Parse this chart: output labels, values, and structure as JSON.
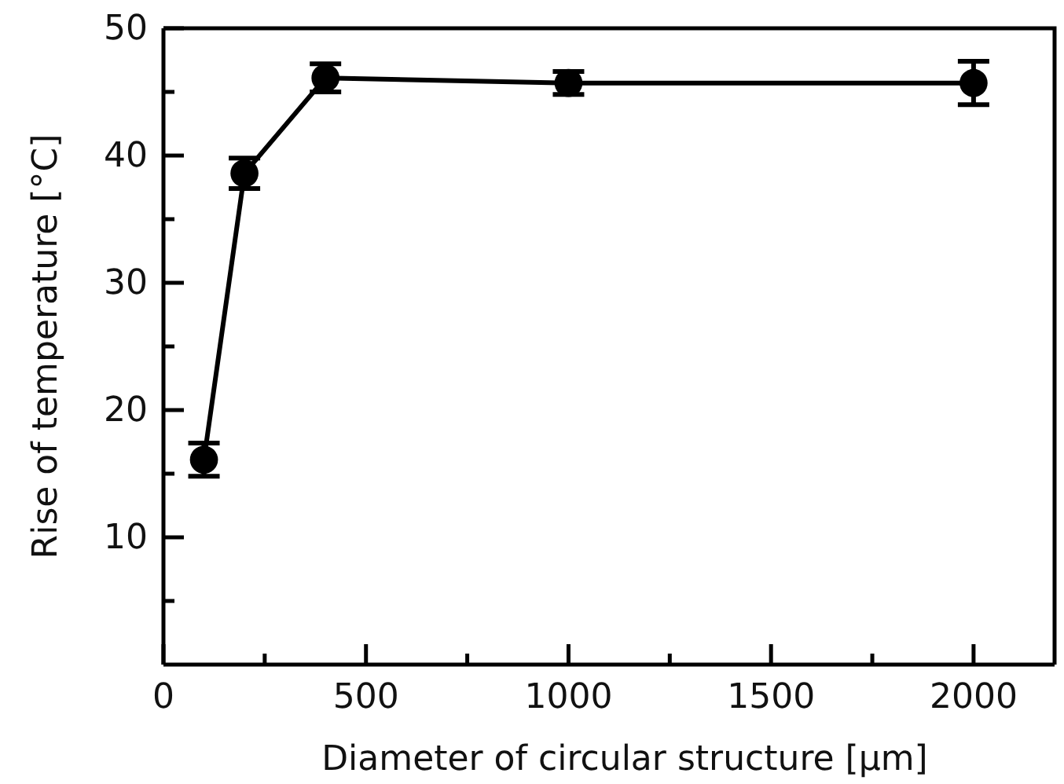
{
  "chart_data": {
    "type": "line",
    "xlabel": "Diameter of circular structure [µm]",
    "ylabel": "Rise of temperature [°C]",
    "x": [
      100,
      200,
      400,
      1000,
      2000
    ],
    "series": [
      {
        "color": "#000000",
        "values": [
          16.1,
          38.6,
          46.1,
          45.7,
          45.7
        ],
        "errors": [
          1.3,
          1.2,
          1.1,
          0.9,
          1.7
        ]
      }
    ],
    "marker": "circle",
    "line_style": "solid",
    "grid": false,
    "xlim": [
      0,
      2200
    ],
    "xticks": [
      0,
      {
        "value": 250,
        "label": null
      },
      500,
      {
        "value": 750,
        "label": null
      },
      1000,
      {
        "value": 1250,
        "label": null
      },
      1500,
      {
        "value": 1750,
        "label": null
      },
      2000
    ],
    "ylim": [
      0,
      50
    ],
    "yticks": [
      {
        "value": 5,
        "label": null
      },
      10,
      {
        "value": 15,
        "label": null
      },
      20,
      {
        "value": 25,
        "label": null
      },
      30,
      {
        "value": 35,
        "label": null
      },
      40,
      {
        "value": 45,
        "label": null
      },
      50
    ]
  }
}
